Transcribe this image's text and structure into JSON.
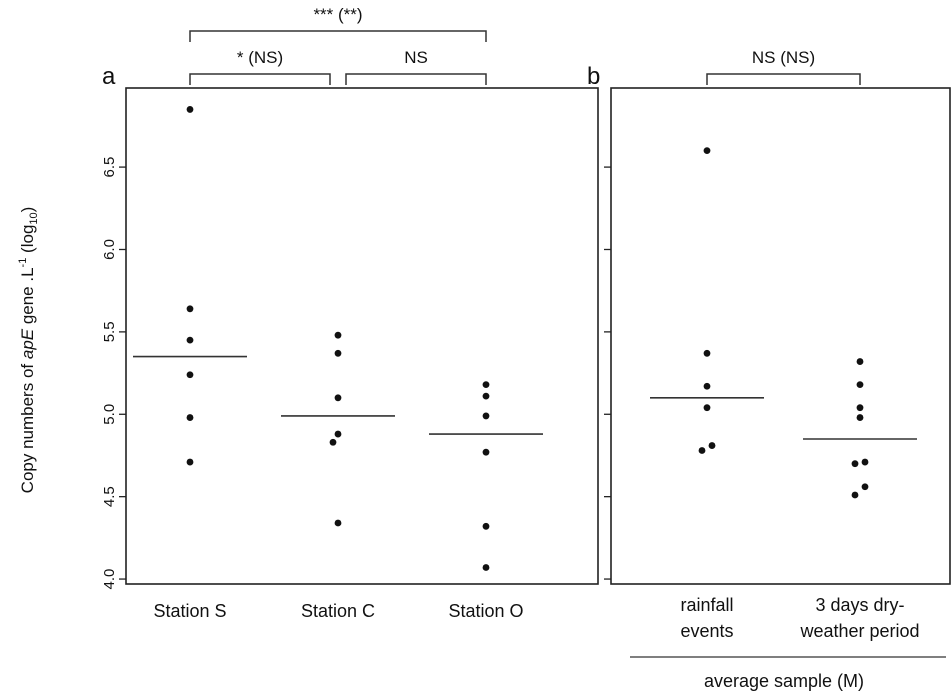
{
  "chart_data": [
    {
      "panel_label": "a",
      "type": "scatter",
      "ylabel": "Copy numbers of apE gene .L⁻¹ (log₁₀)",
      "ylabel_parts": {
        "pre": "Copy numbers of ",
        "gene": "apE",
        "post": " gene .L",
        "sup": "-1",
        "after": " (log",
        "sub": "10",
        "close": ")"
      },
      "ylim": [
        3.97,
        6.98
      ],
      "yticks": [
        4.0,
        4.5,
        5.0,
        5.5,
        6.0,
        6.5
      ],
      "ytick_labels": [
        "4.0",
        "4.5",
        "5.0",
        "5.5",
        "6.0",
        "6.5"
      ],
      "categories": [
        "Station S",
        "Station C",
        "Station O"
      ],
      "series": [
        {
          "category": "Station S",
          "values": [
            6.85,
            5.64,
            5.45,
            5.24,
            4.98,
            4.71
          ],
          "mean": 5.35
        },
        {
          "category": "Station C",
          "values": [
            5.48,
            5.37,
            5.1,
            4.88,
            4.83,
            4.34
          ],
          "mean": 4.99
        },
        {
          "category": "Station O",
          "values": [
            5.18,
            5.11,
            4.99,
            4.77,
            4.32,
            4.07
          ],
          "mean": 4.88
        }
      ],
      "significance": [
        {
          "label": "*** (**)",
          "from": "Station S",
          "to": "Station O"
        },
        {
          "label": "* (NS)",
          "from": "Station S",
          "to": "Station C"
        },
        {
          "label": "NS",
          "from": "Station C",
          "to": "Station O"
        }
      ]
    },
    {
      "panel_label": "b",
      "type": "scatter",
      "ylim": [
        3.97,
        6.98
      ],
      "yticks": [
        4.0,
        4.5,
        5.0,
        5.5,
        6.0,
        6.5
      ],
      "categories": [
        "rainfall events",
        "3 days dry-weather period"
      ],
      "category_lines": [
        [
          "rainfall",
          "events"
        ],
        [
          "3 days dry-",
          "weather period"
        ]
      ],
      "series": [
        {
          "category": "rainfall events",
          "values": [
            6.6,
            5.37,
            5.17,
            5.04,
            4.81,
            4.78
          ],
          "mean": 5.1
        },
        {
          "category": "3 days dry-weather period",
          "values": [
            5.32,
            5.18,
            5.04,
            4.98,
            4.71,
            4.7,
            4.56,
            4.51
          ],
          "mean": 4.85
        }
      ],
      "significance": [
        {
          "label": "NS (NS)",
          "from": "rainfall events",
          "to": "3 days dry-weather period"
        }
      ],
      "group_label": "average sample (M)"
    }
  ]
}
